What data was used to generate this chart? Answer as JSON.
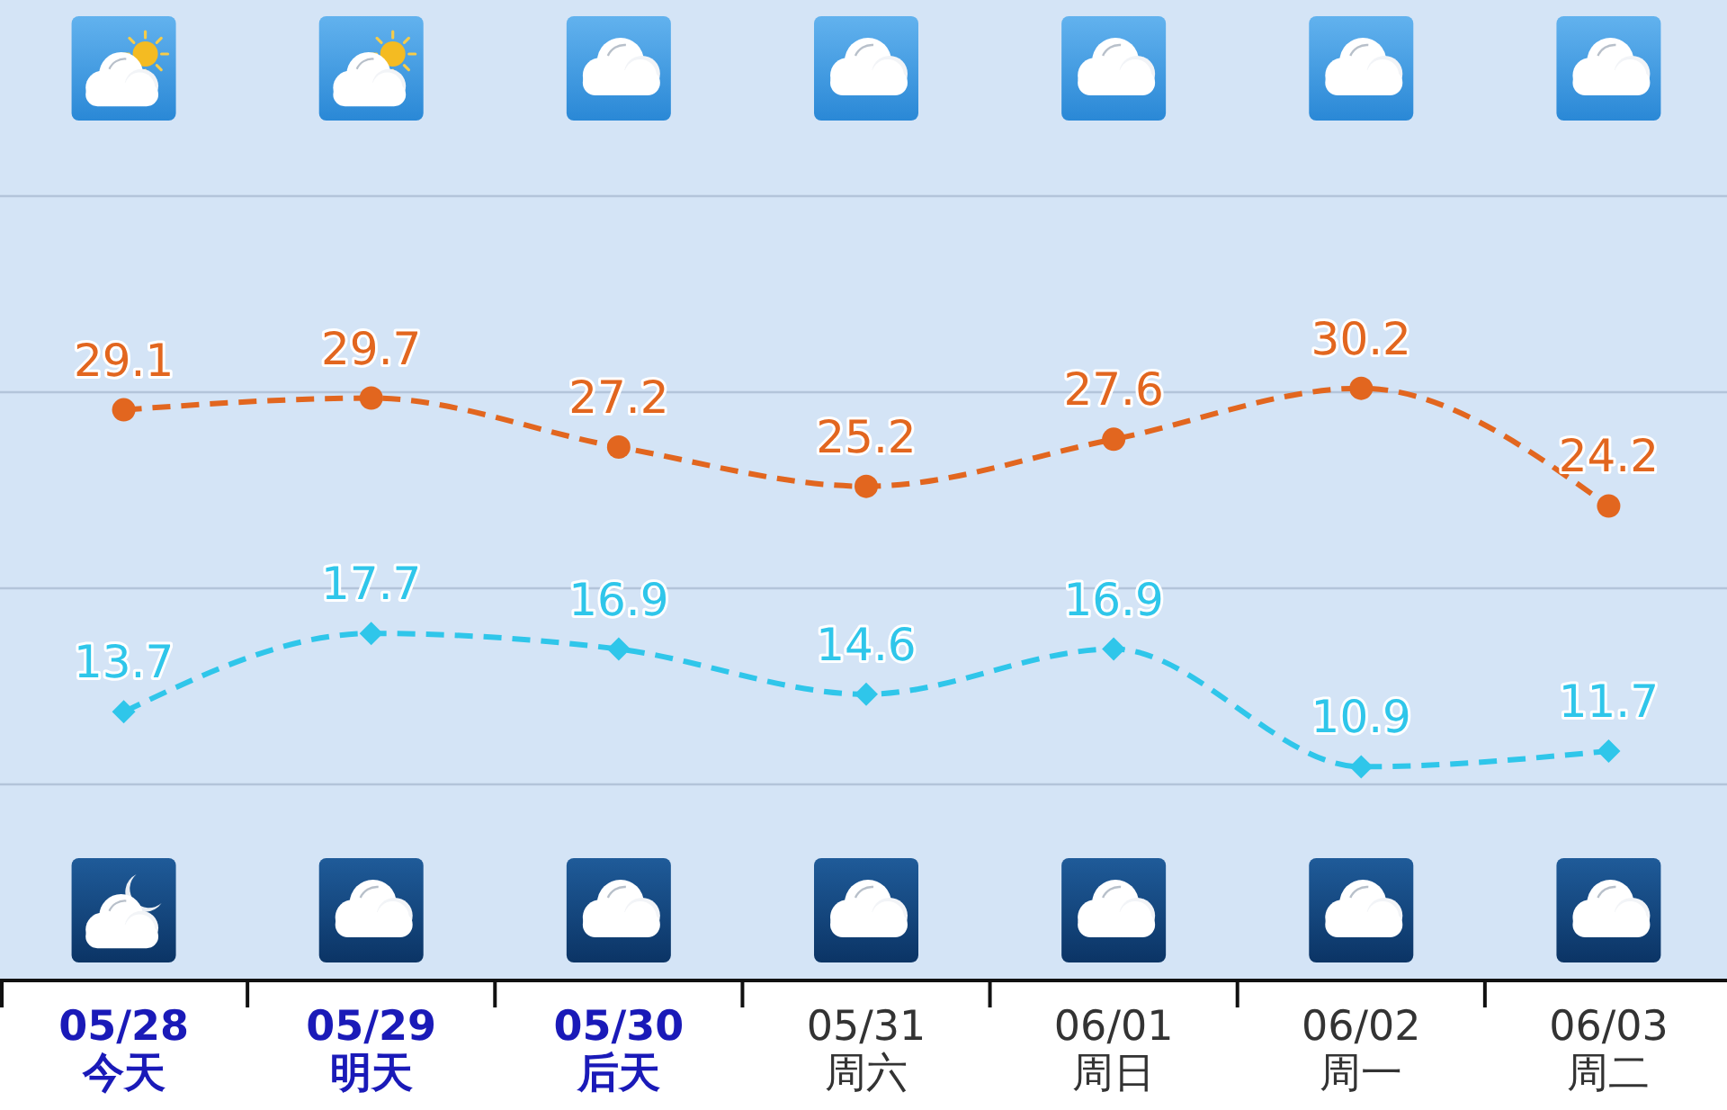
{
  "chart_data": {
    "type": "line",
    "categories": [
      "**05/28**\n**今天**",
      "**05/29**\n**明天**",
      "**05/30**\n**后天**",
      "05/31\n周六",
      "06/01\n周日",
      "06/02\n周一",
      "06/03\n周二"
    ],
    "series": [
      {
        "color": "#e2661f",
        "values": [
          29.1,
          29.7,
          27.2,
          25.2,
          27.6,
          30.2,
          24.2
        ],
        "marker": "circle"
      },
      {
        "color": "#2fc6ea",
        "values": [
          13.7,
          17.7,
          16.9,
          14.6,
          16.9,
          10.9,
          11.7
        ],
        "marker": "diamond"
      }
    ],
    "ylim": [
      0,
      50
    ],
    "yticks": [
      {
        "value": 10,
        "label": null
      },
      {
        "value": 20,
        "label": null
      },
      {
        "value": 30,
        "label": null
      },
      {
        "value": 40,
        "label": null
      }
    ],
    "grid": "y",
    "tick_labels": "x",
    "line_style": "dashed",
    "data_labels": true
  }
}
